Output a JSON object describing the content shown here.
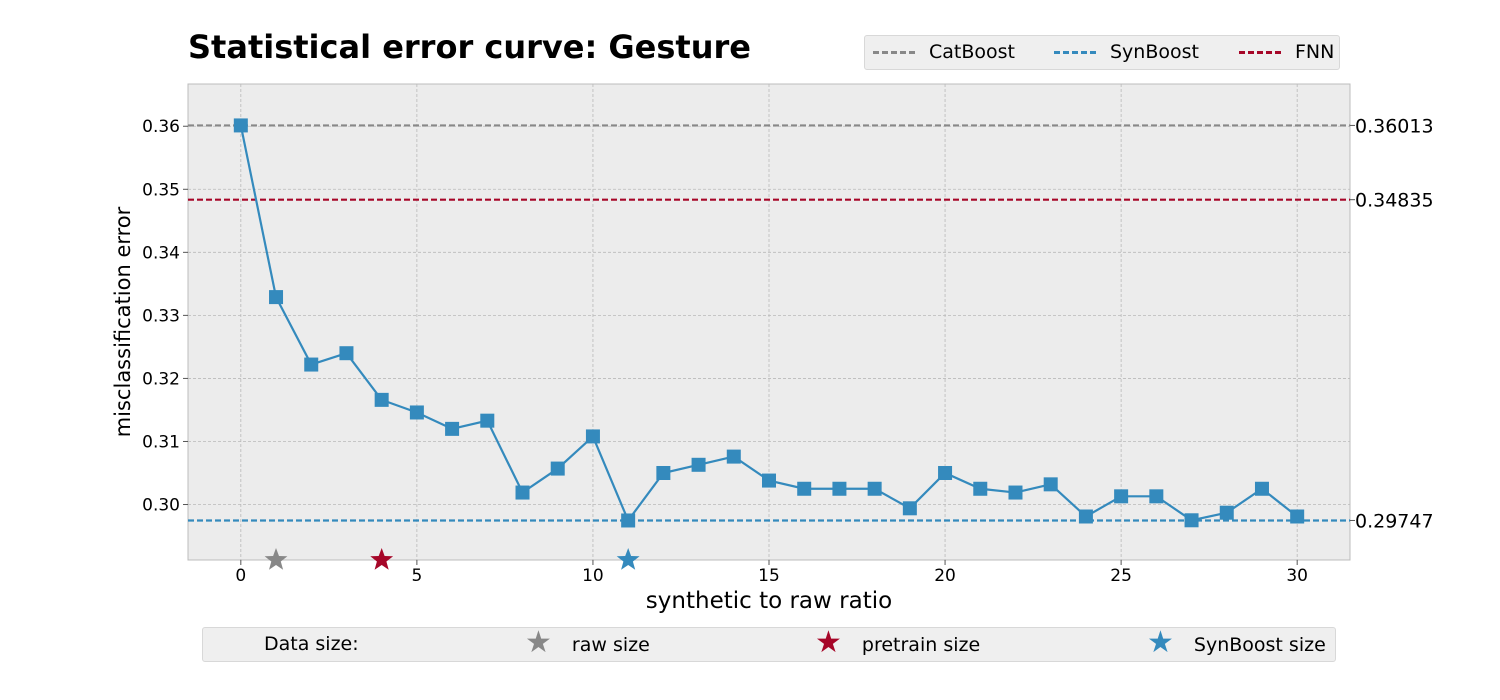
{
  "chart_data": {
    "type": "line",
    "title": "Statistical error curve: Gesture",
    "xlabel": "synthetic to raw ratio",
    "ylabel": "misclassification error",
    "xlim": [
      -1.5,
      31.5
    ],
    "ylim": [
      0.2912,
      0.3667
    ],
    "xticks": [
      0,
      5,
      10,
      15,
      20,
      25,
      30
    ],
    "yticks": [
      0.3,
      0.31,
      0.32,
      0.33,
      0.34,
      0.35,
      0.36
    ],
    "ytick_labels": [
      "0.30",
      "0.31",
      "0.32",
      "0.33",
      "0.34",
      "0.35",
      "0.36"
    ],
    "grid": true,
    "series": [
      {
        "color": "#348abd",
        "marker": "square",
        "x": [
          0,
          1,
          2,
          3,
          4,
          5,
          6,
          7,
          8,
          9,
          10,
          11,
          12,
          13,
          14,
          15,
          16,
          17,
          18,
          19,
          20,
          21,
          22,
          23,
          24,
          25,
          26,
          27,
          28,
          29,
          30
        ],
        "y": [
          0.36013,
          0.3329,
          0.3222,
          0.324,
          0.3166,
          0.3146,
          0.312,
          0.3133,
          0.3019,
          0.3057,
          0.3108,
          0.29747,
          0.305,
          0.3063,
          0.3076,
          0.3038,
          0.3025,
          0.3025,
          0.3025,
          0.2994,
          0.305,
          0.3025,
          0.3019,
          0.3032,
          0.2981,
          0.3013,
          0.3013,
          0.2975,
          0.2987,
          0.3025,
          0.2981
        ]
      }
    ],
    "reference_lines": [
      {
        "name": "CatBoost",
        "value": 0.36013,
        "label": "0.36013",
        "color": "#888888"
      },
      {
        "name": "SynBoost",
        "value": 0.29747,
        "label": "0.29747",
        "color": "#348abd"
      },
      {
        "name": "FNN",
        "value": 0.34835,
        "label": "0.34835",
        "color": "#a60628"
      }
    ],
    "data_size_markers": [
      {
        "name": "raw size",
        "x": 1,
        "color": "#888888"
      },
      {
        "name": "pretrain size",
        "x": 4,
        "color": "#a60628"
      },
      {
        "name": "SynBoost size",
        "x": 11,
        "color": "#348abd"
      }
    ],
    "legend": {
      "top": {
        "placement": "top-right",
        "items": [
          "CatBoost",
          "SynBoost",
          "FNN"
        ]
      },
      "bottom": {
        "placement": "bottom-center",
        "title": "Data size:",
        "items": [
          "raw size",
          "pretrain size",
          "SynBoost size"
        ]
      }
    }
  }
}
